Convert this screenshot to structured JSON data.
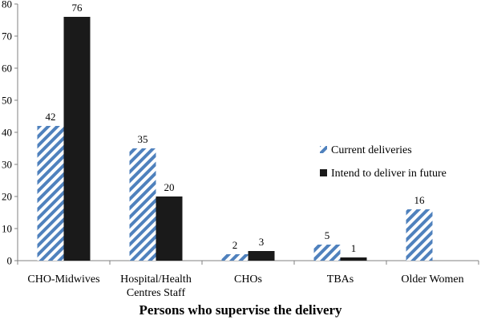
{
  "chart_data": {
    "type": "bar",
    "categories": [
      [
        "CHO-Midwives"
      ],
      [
        "Hospital/Health",
        "Centres Staff"
      ],
      [
        "CHOs"
      ],
      [
        "TBAs"
      ],
      [
        "Older Women"
      ]
    ],
    "series": [
      {
        "name": "Current deliveries",
        "values": [
          42,
          35,
          2,
          5,
          16
        ],
        "color": "#4f81bd",
        "pattern": "diagonal-stripes"
      },
      {
        "name": "Intend to deliver in future",
        "values": [
          76,
          20,
          3,
          1,
          null
        ],
        "color": "#1a1a1a",
        "pattern": "solid"
      }
    ],
    "title": "",
    "xlabel": "Persons who supervise the delivery",
    "ylabel": "",
    "ylim": [
      0,
      80
    ],
    "yticks": [
      0,
      10,
      20,
      30,
      40,
      50,
      60,
      70,
      80
    ],
    "grid": false,
    "legend_position": "right",
    "data_labels": true
  }
}
